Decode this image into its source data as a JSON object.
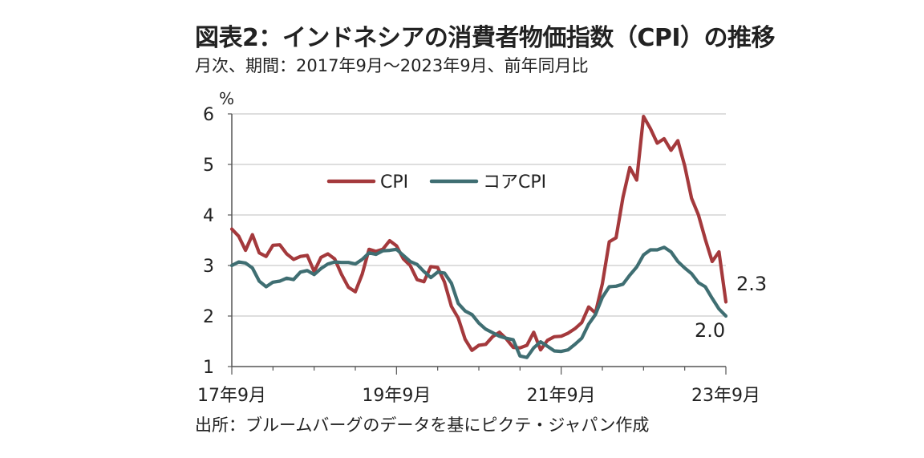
{
  "title": "図表2：インドネシアの消費者物価指数（CPI）の推移",
  "subtitle": "月次、期間：2017年9月～2023年9月、前年同月比",
  "source": "出所：ブルームバーグのデータを基にピクテ・ジャパン作成",
  "chart_data": {
    "type": "line",
    "yunit": "%",
    "ylim": [
      1,
      6
    ],
    "yticks": [
      1,
      2,
      3,
      4,
      5,
      6
    ],
    "x_start": "2017-09",
    "x_end": "2023-09",
    "x": [
      "2017-09",
      "2017-10",
      "2017-11",
      "2017-12",
      "2018-01",
      "2018-02",
      "2018-03",
      "2018-04",
      "2018-05",
      "2018-06",
      "2018-07",
      "2018-08",
      "2018-09",
      "2018-10",
      "2018-11",
      "2018-12",
      "2019-01",
      "2019-02",
      "2019-03",
      "2019-04",
      "2019-05",
      "2019-06",
      "2019-07",
      "2019-08",
      "2019-09",
      "2019-10",
      "2019-11",
      "2019-12",
      "2020-01",
      "2020-02",
      "2020-03",
      "2020-04",
      "2020-05",
      "2020-06",
      "2020-07",
      "2020-08",
      "2020-09",
      "2020-10",
      "2020-11",
      "2020-12",
      "2021-01",
      "2021-02",
      "2021-03",
      "2021-04",
      "2021-05",
      "2021-06",
      "2021-07",
      "2021-08",
      "2021-09",
      "2021-10",
      "2021-11",
      "2021-12",
      "2022-01",
      "2022-02",
      "2022-03",
      "2022-04",
      "2022-05",
      "2022-06",
      "2022-07",
      "2022-08",
      "2022-09",
      "2022-10",
      "2022-11",
      "2022-12",
      "2023-01",
      "2023-02",
      "2023-03",
      "2023-04",
      "2023-05",
      "2023-06",
      "2023-07",
      "2023-08",
      "2023-09"
    ],
    "xtick_labels": [
      {
        "label": "17年9月",
        "index": 0
      },
      {
        "label": "19年9月",
        "index": 24
      },
      {
        "label": "21年9月",
        "index": 48
      },
      {
        "label": "23年9月",
        "index": 72
      }
    ],
    "legend_position": "top-center",
    "grid": true,
    "series": [
      {
        "name": "CPI",
        "color": "#a4393c",
        "end_label": "2.3",
        "values": [
          3.72,
          3.58,
          3.3,
          3.61,
          3.25,
          3.18,
          3.4,
          3.41,
          3.23,
          3.12,
          3.18,
          3.2,
          2.88,
          3.16,
          3.23,
          3.13,
          2.82,
          2.57,
          2.48,
          2.83,
          3.32,
          3.28,
          3.32,
          3.49,
          3.39,
          3.13,
          3.0,
          2.72,
          2.68,
          2.98,
          2.96,
          2.67,
          2.19,
          1.96,
          1.54,
          1.32,
          1.42,
          1.44,
          1.59,
          1.68,
          1.55,
          1.38,
          1.37,
          1.42,
          1.68,
          1.33,
          1.52,
          1.59,
          1.6,
          1.66,
          1.75,
          1.87,
          2.18,
          2.06,
          2.64,
          3.47,
          3.55,
          4.35,
          4.94,
          4.69,
          5.95,
          5.71,
          5.42,
          5.51,
          5.28,
          5.47,
          4.97,
          4.33,
          4.0,
          3.52,
          3.08,
          3.27,
          2.28
        ]
      },
      {
        "name": "コアCPI",
        "color": "#3f6e72",
        "end_label": "2.0",
        "values": [
          3.0,
          3.07,
          3.05,
          2.95,
          2.69,
          2.58,
          2.67,
          2.69,
          2.75,
          2.72,
          2.87,
          2.9,
          2.82,
          2.94,
          3.03,
          3.07,
          3.06,
          3.06,
          3.03,
          3.12,
          3.25,
          3.22,
          3.29,
          3.3,
          3.32,
          3.2,
          3.08,
          3.02,
          2.88,
          2.76,
          2.87,
          2.85,
          2.65,
          2.25,
          2.1,
          2.03,
          1.86,
          1.74,
          1.67,
          1.6,
          1.56,
          1.53,
          1.21,
          1.18,
          1.37,
          1.49,
          1.4,
          1.31,
          1.3,
          1.33,
          1.44,
          1.56,
          1.84,
          2.03,
          2.37,
          2.58,
          2.59,
          2.63,
          2.81,
          2.97,
          3.21,
          3.31,
          3.31,
          3.36,
          3.27,
          3.08,
          2.95,
          2.84,
          2.66,
          2.58,
          2.35,
          2.14,
          2.0
        ]
      }
    ]
  }
}
